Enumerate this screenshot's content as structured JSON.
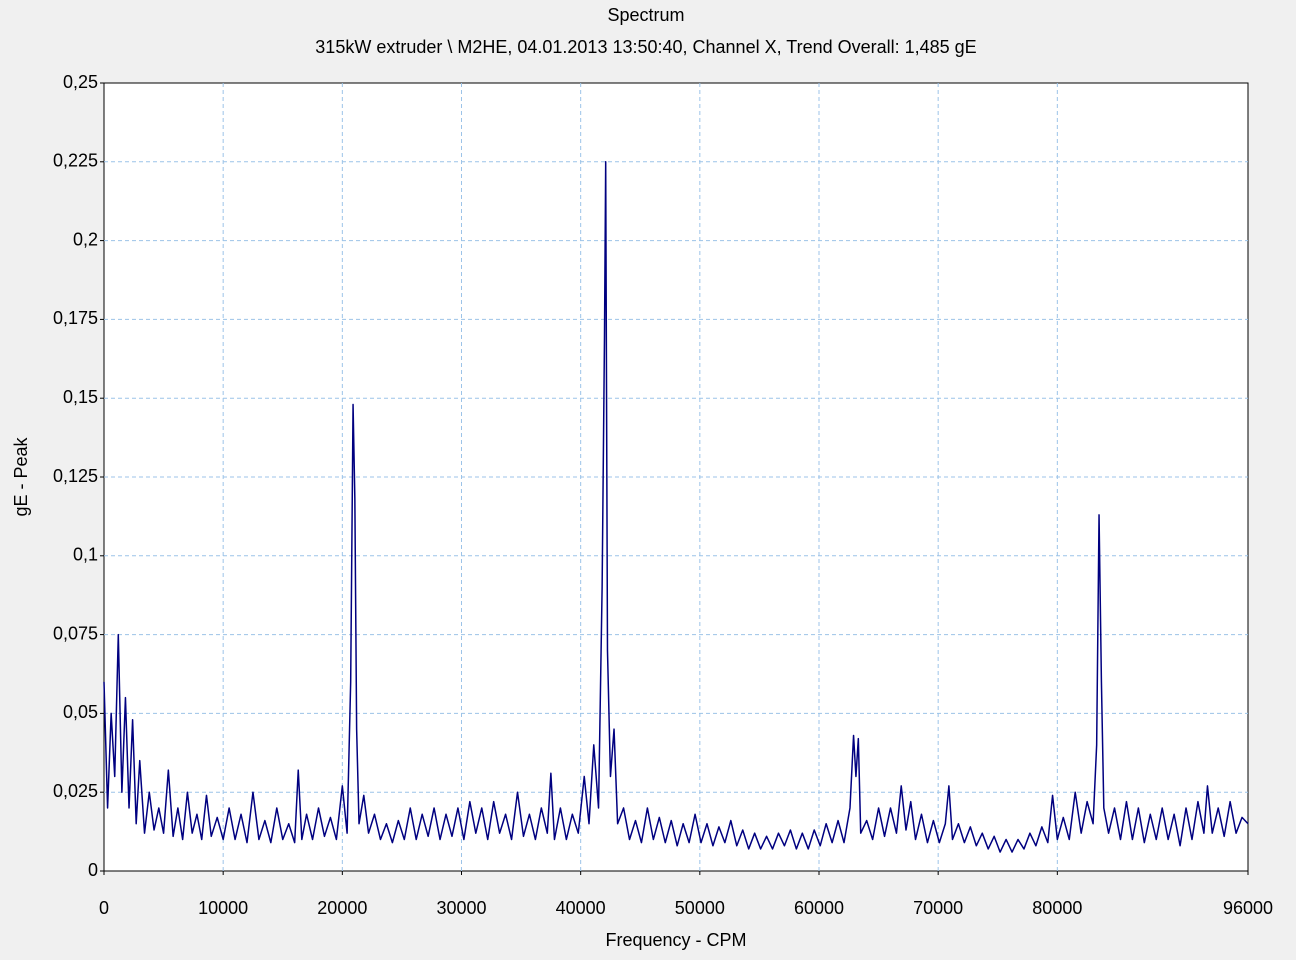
{
  "chart_data": {
    "type": "line",
    "title": "Spectrum",
    "subtitle": "315kW extruder \\ M2HE, 04.01.2013 13:50:40, Channel X, Trend Overall: 1,485 gE",
    "x_label": "Frequency - CPM",
    "y_label": "gE - Peak",
    "color": "#000080",
    "grid": true,
    "xlim": [
      0,
      96000
    ],
    "xticks": [
      0,
      10000,
      20000,
      30000,
      40000,
      50000,
      60000,
      70000,
      80000,
      96000
    ],
    "ylim": [
      0,
      0.25
    ],
    "yticks": [
      0,
      {
        "value": 0.025,
        "label": "0,025"
      },
      {
        "value": 0.05,
        "label": "0,05"
      },
      {
        "value": 0.075,
        "label": "0,075"
      },
      {
        "value": 0.1,
        "label": "0,1"
      },
      {
        "value": 0.125,
        "label": "0,125"
      },
      {
        "value": 0.15,
        "label": "0,15"
      },
      {
        "value": 0.175,
        "label": "0,175"
      },
      {
        "value": 0.2,
        "label": "0,2"
      },
      {
        "value": 0.225,
        "label": "0,225"
      },
      {
        "value": 0.25,
        "label": "0,25"
      }
    ],
    "x": [
      0,
      300,
      600,
      900,
      1200,
      1500,
      1800,
      2100,
      2400,
      2700,
      3000,
      3400,
      3800,
      4200,
      4600,
      5000,
      5400,
      5800,
      6200,
      6600,
      7000,
      7400,
      7800,
      8200,
      8600,
      9000,
      9500,
      10000,
      10500,
      11000,
      11500,
      12000,
      12500,
      13000,
      13500,
      14000,
      14500,
      15000,
      15500,
      16000,
      16300,
      16600,
      17000,
      17500,
      18000,
      18500,
      19000,
      19500,
      20000,
      20400,
      20700,
      20900,
      21050,
      21200,
      21400,
      21800,
      22200,
      22700,
      23200,
      23700,
      24200,
      24700,
      25200,
      25700,
      26200,
      26700,
      27200,
      27700,
      28200,
      28700,
      29200,
      29700,
      30200,
      30700,
      31200,
      31700,
      32200,
      32700,
      33200,
      33700,
      34200,
      34700,
      35200,
      35700,
      36200,
      36700,
      37200,
      37500,
      37800,
      38300,
      38800,
      39300,
      39800,
      40300,
      40700,
      41100,
      41500,
      41800,
      42000,
      42100,
      42250,
      42500,
      42800,
      43100,
      43600,
      44100,
      44600,
      45100,
      45600,
      46100,
      46600,
      47100,
      47600,
      48100,
      48600,
      49100,
      49600,
      50100,
      50600,
      51100,
      51600,
      52100,
      52600,
      53100,
      53600,
      54100,
      54600,
      55100,
      55600,
      56100,
      56600,
      57100,
      57600,
      58100,
      58600,
      59100,
      59600,
      60100,
      60600,
      61100,
      61600,
      62100,
      62600,
      62900,
      63100,
      63300,
      63500,
      64000,
      64500,
      65000,
      65500,
      66000,
      66500,
      66900,
      67300,
      67700,
      68100,
      68600,
      69100,
      69600,
      70100,
      70600,
      70900,
      71200,
      71700,
      72200,
      72700,
      73200,
      73700,
      74200,
      74700,
      75200,
      75700,
      76200,
      76700,
      77200,
      77700,
      78200,
      78700,
      79200,
      79600,
      80000,
      80500,
      81000,
      81500,
      82000,
      82500,
      83000,
      83300,
      83500,
      83700,
      83900,
      84300,
      84800,
      85300,
      85800,
      86300,
      86800,
      87300,
      87800,
      88300,
      88800,
      89300,
      89800,
      90300,
      90800,
      91300,
      91800,
      92300,
      92600,
      93000,
      93500,
      94000,
      94500,
      95000,
      95500,
      96000
    ],
    "values": [
      0.06,
      0.02,
      0.05,
      0.03,
      0.075,
      0.025,
      0.055,
      0.02,
      0.048,
      0.015,
      0.035,
      0.012,
      0.025,
      0.013,
      0.02,
      0.012,
      0.032,
      0.011,
      0.02,
      0.01,
      0.025,
      0.012,
      0.018,
      0.01,
      0.024,
      0.011,
      0.017,
      0.01,
      0.02,
      0.01,
      0.018,
      0.009,
      0.025,
      0.01,
      0.016,
      0.009,
      0.02,
      0.01,
      0.015,
      0.009,
      0.032,
      0.01,
      0.018,
      0.01,
      0.02,
      0.011,
      0.017,
      0.01,
      0.027,
      0.012,
      0.06,
      0.148,
      0.118,
      0.045,
      0.015,
      0.024,
      0.012,
      0.018,
      0.01,
      0.015,
      0.009,
      0.016,
      0.01,
      0.02,
      0.01,
      0.018,
      0.011,
      0.02,
      0.01,
      0.018,
      0.011,
      0.02,
      0.01,
      0.022,
      0.012,
      0.02,
      0.01,
      0.022,
      0.012,
      0.018,
      0.01,
      0.025,
      0.011,
      0.018,
      0.01,
      0.02,
      0.012,
      0.031,
      0.01,
      0.02,
      0.01,
      0.018,
      0.012,
      0.03,
      0.015,
      0.04,
      0.02,
      0.09,
      0.17,
      0.225,
      0.07,
      0.03,
      0.045,
      0.015,
      0.02,
      0.01,
      0.016,
      0.009,
      0.02,
      0.01,
      0.017,
      0.009,
      0.016,
      0.008,
      0.015,
      0.009,
      0.018,
      0.009,
      0.015,
      0.008,
      0.014,
      0.009,
      0.016,
      0.008,
      0.013,
      0.007,
      0.012,
      0.007,
      0.011,
      0.007,
      0.012,
      0.008,
      0.013,
      0.007,
      0.012,
      0.007,
      0.013,
      0.008,
      0.015,
      0.009,
      0.016,
      0.009,
      0.02,
      0.043,
      0.03,
      0.042,
      0.012,
      0.016,
      0.01,
      0.02,
      0.011,
      0.02,
      0.012,
      0.027,
      0.013,
      0.022,
      0.01,
      0.018,
      0.009,
      0.016,
      0.009,
      0.015,
      0.027,
      0.01,
      0.015,
      0.009,
      0.014,
      0.008,
      0.012,
      0.007,
      0.011,
      0.006,
      0.01,
      0.006,
      0.01,
      0.007,
      0.012,
      0.008,
      0.014,
      0.009,
      0.024,
      0.01,
      0.017,
      0.01,
      0.025,
      0.012,
      0.022,
      0.015,
      0.04,
      0.113,
      0.06,
      0.02,
      0.012,
      0.02,
      0.01,
      0.022,
      0.01,
      0.02,
      0.009,
      0.018,
      0.01,
      0.02,
      0.01,
      0.018,
      0.008,
      0.02,
      0.01,
      0.022,
      0.012,
      0.027,
      0.012,
      0.02,
      0.011,
      0.022,
      0.012,
      0.017,
      0.015
    ]
  }
}
